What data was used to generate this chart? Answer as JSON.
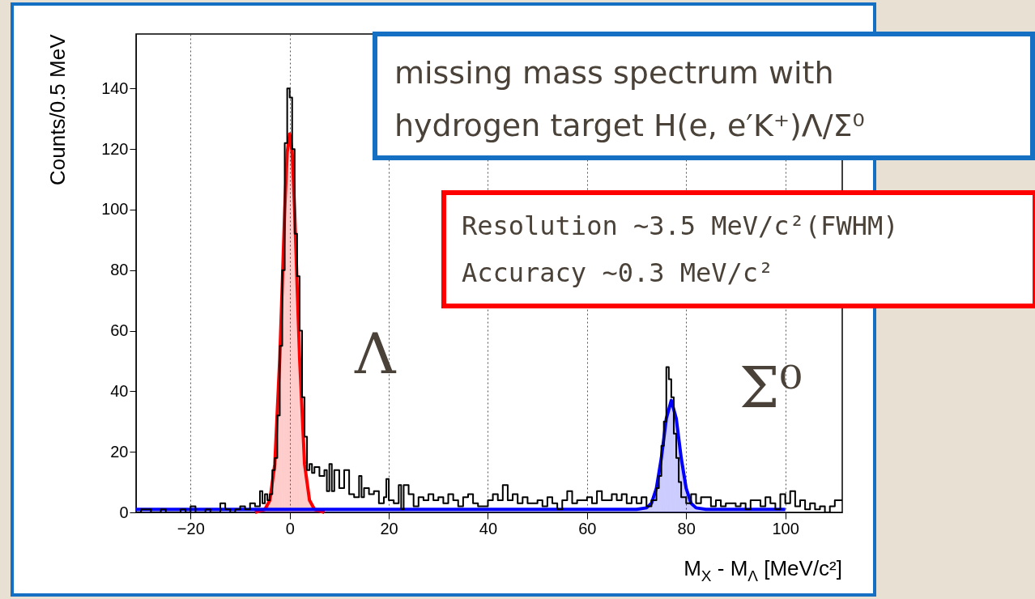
{
  "chart_data": {
    "type": "step",
    "xlabel": "M$_{X}$ - M$_{Λ}$ [MeV/c²]",
    "ylabel": "Counts/0.5 MeV",
    "xlim": [
      -31,
      111.5
    ],
    "ylim": [
      0,
      158
    ],
    "xticks": [
      -20,
      0,
      20,
      40,
      60,
      80,
      100
    ],
    "yticks": [
      0,
      20,
      40,
      60,
      80,
      100,
      120,
      140
    ],
    "grid": "x",
    "marker": "none",
    "annotations": [
      "missing mass spectrum with\nhydrogen target H(e, e′K⁺)Λ/Σ⁰",
      "Resolution ~3.5 MeV/c²(FWHM)",
      "Accuracy ~0.3 MeV/c²",
      "Λ",
      "Σ⁰"
    ],
    "series": [
      {
        "type": "area",
        "color": "#ff0000",
        "x": [
          -7,
          -5,
          -4,
          -3,
          -2,
          -1.5,
          -1,
          -0.5,
          0,
          0.5,
          1,
          1.5,
          2,
          3,
          4,
          5,
          7
        ],
        "values": [
          0,
          1,
          4,
          16,
          51,
          75,
          100,
          119,
          125,
          119,
          100,
          75,
          51,
          16,
          4,
          1,
          0
        ]
      },
      {
        "type": "area",
        "color": "#0000ff",
        "x": [
          -31,
          70,
          72,
          73,
          74,
          75,
          76,
          77,
          78,
          79,
          80,
          81,
          82,
          84,
          100
        ],
        "values": [
          1,
          1,
          1.5,
          3,
          8,
          18,
          31,
          37,
          31,
          18,
          8,
          3,
          1.5,
          1,
          1
        ]
      },
      {
        "type": "step",
        "color": "#000000",
        "x": [
          -31,
          -30,
          -28,
          -26,
          -25,
          -22,
          -21,
          -20,
          -19,
          -17,
          -16,
          -14,
          -13,
          -12,
          -11,
          -10,
          -9,
          -8,
          -7,
          -6,
          -5.5,
          -5,
          -4.5,
          -4,
          -3.5,
          -3,
          -2.5,
          -2,
          -1.5,
          -1,
          -0.5,
          0,
          0.5,
          1,
          1.5,
          2,
          2.5,
          3,
          3.5,
          4,
          4.5,
          5,
          6,
          7,
          7.5,
          8,
          8.5,
          9,
          10,
          11,
          12,
          13,
          14,
          14.5,
          15,
          16,
          17,
          18,
          19,
          19.5,
          20,
          21,
          22,
          22.5,
          23,
          24,
          25,
          26,
          27,
          28,
          29,
          30,
          31,
          32,
          33,
          34,
          35,
          36,
          37,
          38,
          40,
          41,
          42,
          43,
          44,
          45,
          46,
          47,
          48,
          50,
          51,
          52,
          53,
          54,
          55,
          56,
          57,
          58,
          60,
          61,
          62,
          63,
          65,
          66,
          67,
          68,
          69,
          70,
          71,
          72,
          73,
          74,
          74.5,
          75,
          75.5,
          76,
          76.5,
          77,
          77.5,
          78,
          78.5,
          79,
          80,
          81,
          82,
          83,
          85,
          86,
          87,
          88,
          90,
          91,
          92,
          93,
          95,
          96,
          97,
          98,
          99,
          100,
          101,
          102,
          103,
          104,
          105,
          106,
          107,
          108,
          109,
          110,
          111.5
        ],
        "values": [
          0,
          1,
          0,
          1,
          0,
          1,
          0,
          2,
          0,
          1,
          0,
          3,
          1,
          0,
          1,
          2,
          1,
          3,
          2,
          7,
          3,
          6,
          4,
          6,
          14,
          18,
          32,
          55,
          80,
          122,
          140,
          137,
          120,
          92,
          78,
          60,
          38,
          25,
          14,
          16,
          13,
          15,
          12,
          14,
          7,
          16,
          7,
          14,
          8,
          14,
          6,
          5,
          12,
          5,
          8,
          6,
          7,
          3,
          5,
          11,
          4,
          3,
          9,
          1,
          9,
          6,
          2,
          5,
          4,
          6,
          4,
          5,
          3,
          6,
          4,
          2,
          5,
          6,
          3,
          2,
          4,
          6,
          4,
          9,
          4,
          6,
          3,
          5,
          3,
          4,
          2,
          5,
          3,
          1,
          4,
          7,
          3,
          4,
          5,
          3,
          7,
          4,
          6,
          4,
          6,
          3,
          5,
          3,
          5,
          2,
          4,
          8,
          12,
          22,
          30,
          48,
          44,
          38,
          26,
          18,
          10,
          5,
          3,
          6,
          3,
          5,
          2,
          4,
          2,
          3,
          2,
          3,
          1,
          4,
          2,
          5,
          3,
          1,
          6,
          3,
          7,
          2,
          4,
          1,
          3,
          1,
          2,
          0,
          2,
          4,
          4
        ]
      }
    ]
  }
}
